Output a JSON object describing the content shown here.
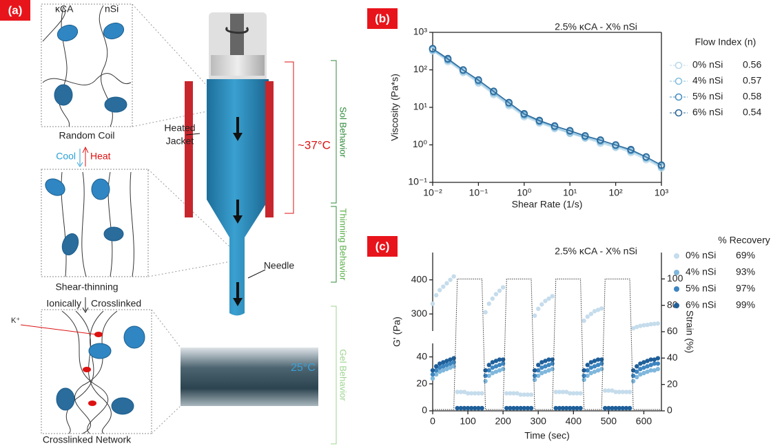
{
  "panel_a": {
    "label": "(a)",
    "kca": "κCA",
    "nsi": "nSi",
    "random_coil": "Random Coil",
    "cool": "Cool",
    "heat": "Heat",
    "shear_thinning": "Shear-thinning",
    "ionically": "Ionically",
    "crosslinked": "Crosslinked",
    "k_ion": "K⁺",
    "crosslinked_network": "Crosslinked Network",
    "heated_jacket": [
      "Heated",
      "Jacket"
    ],
    "needle": "Needle",
    "temp_jacket": "~37°C",
    "temp_print": "25°C",
    "sol": "Sol Behavior",
    "thinning": "Thinning Behavior",
    "gel": "Gel Behavior"
  },
  "chart_data": [
    {
      "type": "line",
      "panel_label": "(b)",
      "title": "2.5% κCA - X% nSi",
      "x_label": "Shear Rate (1/s)",
      "y_label": "Viscosity (Pa*s)",
      "xscale": "log",
      "yscale": "log",
      "xlim": [
        0.01,
        1000
      ],
      "ylim": [
        0.1,
        1000
      ],
      "xticks": [
        {
          "value": 0.01,
          "label": "10⁻²"
        },
        {
          "value": 0.1,
          "label": "10⁻¹"
        },
        {
          "value": 1,
          "label": "10⁰"
        },
        {
          "value": 10,
          "label": "10¹"
        },
        {
          "value": 100,
          "label": "10²"
        },
        {
          "value": 1000,
          "label": "10³"
        }
      ],
      "yticks": [
        {
          "value": 0.1,
          "label": "10⁻¹"
        },
        {
          "value": 1,
          "label": "10⁰"
        },
        {
          "value": 10,
          "label": "10¹"
        },
        {
          "value": 100,
          "label": "10²"
        },
        {
          "value": 1000,
          "label": "10³"
        }
      ],
      "legend_title": "Flow Index (n)",
      "x": [
        0.01,
        0.0215,
        0.0464,
        0.1,
        0.215,
        0.464,
        1,
        2.15,
        4.64,
        10,
        21.5,
        46.4,
        100,
        215,
        464,
        1000
      ],
      "series": [
        {
          "name": "0% nSi",
          "flow_index": 0.56,
          "color": "#bcd9ea",
          "values": [
            320,
            165,
            85,
            44,
            22,
            11,
            5.6,
            3.8,
            2.7,
            2.0,
            1.5,
            1.1,
            0.85,
            0.62,
            0.4,
            0.24
          ]
        },
        {
          "name": "4% nSi",
          "flow_index": 0.57,
          "color": "#86bfde",
          "values": [
            340,
            180,
            92,
            48,
            24,
            12,
            6.1,
            4.1,
            2.9,
            2.1,
            1.6,
            1.2,
            0.92,
            0.68,
            0.44,
            0.26
          ]
        },
        {
          "name": "5% nSi",
          "flow_index": 0.58,
          "color": "#4a8fc2",
          "values": [
            360,
            190,
            98,
            52,
            26,
            13,
            6.5,
            4.3,
            3.1,
            2.3,
            1.7,
            1.3,
            0.98,
            0.72,
            0.47,
            0.28
          ]
        },
        {
          "name": "6% nSi",
          "flow_index": 0.54,
          "color": "#2c6797",
          "values": [
            370,
            200,
            100,
            54,
            27,
            13.5,
            6.8,
            4.5,
            3.2,
            2.4,
            1.75,
            1.35,
            1.0,
            0.75,
            0.48,
            0.29
          ]
        }
      ]
    },
    {
      "type": "scatter",
      "panel_label": "(c)",
      "title": "2.5% κCA - X% nSi",
      "x_label": "Time (sec)",
      "y_label": "G' (Pa)",
      "y2_label": "Strain (%)",
      "xlim": [
        0,
        650
      ],
      "ylim": [
        0,
        480
      ],
      "ybreak": [
        50,
        250
      ],
      "y2lim": [
        0,
        120
      ],
      "xticks": [
        0,
        100,
        200,
        300,
        400,
        500,
        600
      ],
      "yticks": [
        0,
        20,
        40,
        300,
        400
      ],
      "y2ticks": [
        0,
        20,
        40,
        60,
        80,
        100
      ],
      "legend_title": "% Recovery",
      "x": [
        0,
        10,
        20,
        30,
        40,
        50,
        60,
        70,
        80,
        90,
        100,
        110,
        120,
        130,
        140,
        150,
        160,
        170,
        180,
        190,
        200,
        210,
        220,
        230,
        240,
        250,
        260,
        270,
        280,
        290,
        300,
        310,
        320,
        330,
        340,
        350,
        360,
        370,
        380,
        390,
        400,
        410,
        420,
        430,
        440,
        450,
        460,
        470,
        480,
        490,
        500,
        510,
        520,
        530,
        540,
        550,
        560,
        570,
        580,
        590,
        600,
        610,
        620,
        630,
        640
      ],
      "series": [
        {
          "name": "0% nSi",
          "recovery": "69%",
          "color": "#c5dcec",
          "values": [
            330,
            355,
            370,
            380,
            390,
            400,
            410,
            14,
            14,
            14,
            13,
            13,
            13,
            13,
            13,
            305,
            330,
            345,
            358,
            368,
            378,
            13,
            13,
            13,
            13,
            12,
            12,
            12,
            12,
            295,
            315,
            328,
            338,
            345,
            352,
            14,
            14,
            14,
            14,
            13,
            13,
            13,
            13,
            280,
            292,
            300,
            308,
            312,
            316,
            15,
            15,
            15,
            14,
            14,
            14,
            14,
            14,
            258,
            262,
            265,
            267,
            268,
            270,
            271,
            272
          ]
        },
        {
          "name": "4% nSi",
          "recovery": "93%",
          "color": "#7fb7dc",
          "values": [
            24,
            27,
            29,
            30,
            31,
            32,
            33,
            2,
            2,
            2,
            2,
            2,
            2,
            2,
            2,
            22,
            26,
            28,
            29,
            30,
            31,
            2,
            2,
            2,
            2,
            2,
            2,
            2,
            2,
            23,
            26,
            28,
            29,
            30,
            31,
            2,
            2,
            2,
            2,
            2,
            2,
            2,
            2,
            23,
            26,
            28,
            29,
            30,
            31,
            2,
            2,
            2,
            2,
            2,
            2,
            2,
            2,
            22,
            25,
            27,
            28,
            29,
            30,
            30,
            31
          ]
        },
        {
          "name": "5% nSi",
          "recovery": "97%",
          "color": "#3d85c0",
          "values": [
            27,
            30,
            32,
            33,
            34,
            35,
            36,
            2,
            2,
            2,
            2,
            2,
            2,
            2,
            2,
            26,
            30,
            32,
            33,
            34,
            35,
            2,
            2,
            2,
            2,
            2,
            2,
            2,
            2,
            26,
            30,
            32,
            33,
            34,
            35,
            2,
            2,
            2,
            2,
            2,
            2,
            2,
            2,
            26,
            30,
            32,
            33,
            34,
            35,
            2,
            2,
            2,
            2,
            2,
            2,
            2,
            2,
            26,
            29,
            31,
            32,
            33,
            34,
            35,
            35
          ]
        },
        {
          "name": "6% nSi",
          "recovery": "99%",
          "color": "#1f5f99",
          "values": [
            30,
            33,
            35,
            36,
            37,
            38,
            39,
            2,
            2,
            2,
            2,
            2,
            2,
            2,
            2,
            30,
            34,
            36,
            37,
            38,
            38,
            2,
            2,
            2,
            2,
            2,
            2,
            2,
            2,
            30,
            34,
            36,
            37,
            38,
            38,
            2,
            2,
            2,
            2,
            2,
            2,
            2,
            2,
            30,
            34,
            36,
            37,
            38,
            38,
            2,
            2,
            2,
            2,
            2,
            2,
            2,
            2,
            30,
            33,
            35,
            36,
            37,
            38,
            38,
            39
          ]
        },
        {
          "axis": "y2",
          "style": "dotted",
          "color": "#333333",
          "x": [
            0,
            60,
            70,
            140,
            150,
            200,
            210,
            280,
            290,
            340,
            350,
            420,
            430,
            480,
            490,
            560,
            570,
            650
          ],
          "values": [
            1,
            1,
            100,
            100,
            1,
            1,
            100,
            100,
            1,
            1,
            100,
            100,
            1,
            1,
            100,
            100,
            1,
            1
          ]
        }
      ]
    }
  ]
}
